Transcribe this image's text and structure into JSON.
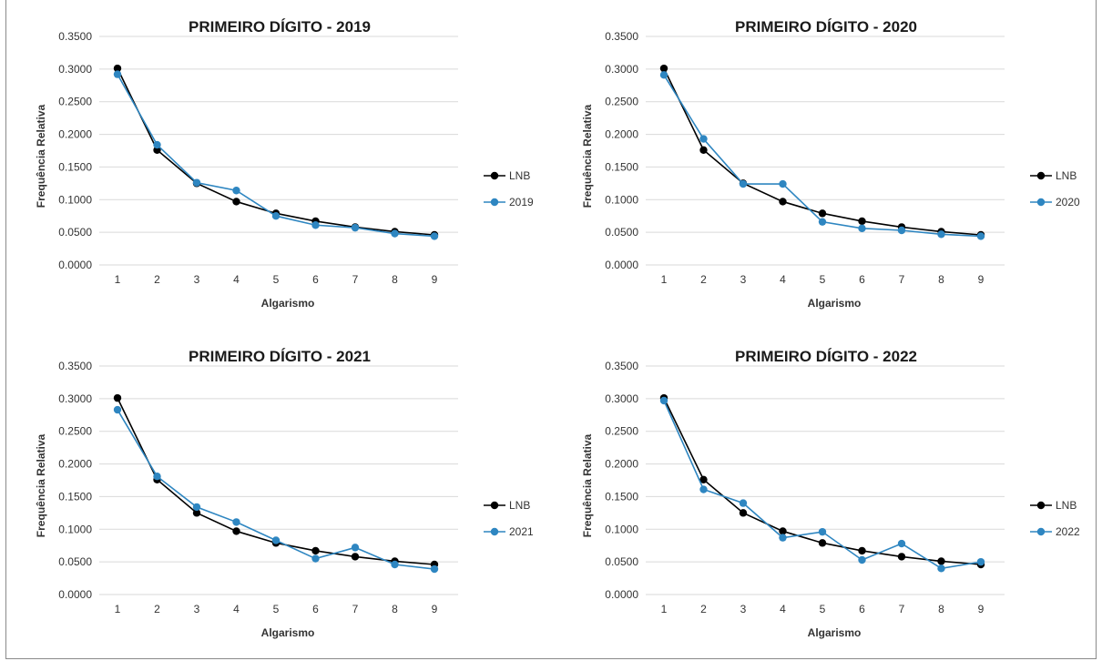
{
  "chart_data": [
    {
      "type": "line",
      "title": "PRIMEIRO DÍGITO - 2019",
      "xlabel": "Algarismo",
      "ylabel": "Frequência Relativa",
      "categories": [
        "1",
        "2",
        "3",
        "4",
        "5",
        "6",
        "7",
        "8",
        "9"
      ],
      "ylim": [
        0,
        0.35
      ],
      "yticks": [
        "0.0000",
        "0.0500",
        "0.1000",
        "0.1500",
        "0.2000",
        "0.2500",
        "0.3000",
        "0.3500"
      ],
      "grid": true,
      "legend": "right",
      "series": [
        {
          "name": "LNB",
          "color": "#000000",
          "values": [
            0.301,
            0.176,
            0.125,
            0.097,
            0.079,
            0.067,
            0.058,
            0.051,
            0.046
          ]
        },
        {
          "name": "2019",
          "color": "#2e86c1",
          "values": [
            0.292,
            0.184,
            0.126,
            0.114,
            0.075,
            0.061,
            0.057,
            0.048,
            0.044
          ]
        }
      ]
    },
    {
      "type": "line",
      "title": "PRIMEIRO DÍGITO - 2020",
      "xlabel": "Algarismo",
      "ylabel": "Frequência Relativa",
      "categories": [
        "1",
        "2",
        "3",
        "4",
        "5",
        "6",
        "7",
        "8",
        "9"
      ],
      "ylim": [
        0,
        0.35
      ],
      "yticks": [
        "0.0000",
        "0.0500",
        "0.1000",
        "0.1500",
        "0.2000",
        "0.2500",
        "0.3000",
        "0.3500"
      ],
      "grid": true,
      "legend": "right",
      "series": [
        {
          "name": "LNB",
          "color": "#000000",
          "values": [
            0.301,
            0.176,
            0.125,
            0.097,
            0.079,
            0.067,
            0.058,
            0.051,
            0.046
          ]
        },
        {
          "name": "2020",
          "color": "#2e86c1",
          "values": [
            0.291,
            0.193,
            0.124,
            0.124,
            0.066,
            0.056,
            0.053,
            0.047,
            0.044
          ]
        }
      ]
    },
    {
      "type": "line",
      "title": "PRIMEIRO DÍGITO - 2021",
      "xlabel": "Algarismo",
      "ylabel": "Frequência Relativa",
      "categories": [
        "1",
        "2",
        "3",
        "4",
        "5",
        "6",
        "7",
        "8",
        "9"
      ],
      "ylim": [
        0,
        0.35
      ],
      "yticks": [
        "0.0000",
        "0.0500",
        "0.1000",
        "0.1500",
        "0.2000",
        "0.2500",
        "0.3000",
        "0.3500"
      ],
      "grid": true,
      "legend": "right",
      "series": [
        {
          "name": "LNB",
          "color": "#000000",
          "values": [
            0.301,
            0.176,
            0.125,
            0.097,
            0.079,
            0.067,
            0.058,
            0.051,
            0.046
          ]
        },
        {
          "name": "2021",
          "color": "#2e86c1",
          "values": [
            0.283,
            0.181,
            0.134,
            0.111,
            0.083,
            0.055,
            0.072,
            0.046,
            0.039
          ]
        }
      ]
    },
    {
      "type": "line",
      "title": "PRIMEIRO DÍGITO - 2022",
      "xlabel": "Algarismo",
      "ylabel": "Frequência Relativa",
      "categories": [
        "1",
        "2",
        "3",
        "4",
        "5",
        "6",
        "7",
        "8",
        "9"
      ],
      "ylim": [
        0,
        0.35
      ],
      "yticks": [
        "0.0000",
        "0.0500",
        "0.1000",
        "0.1500",
        "0.2000",
        "0.2500",
        "0.3000",
        "0.3500"
      ],
      "grid": true,
      "legend": "right",
      "series": [
        {
          "name": "LNB",
          "color": "#000000",
          "values": [
            0.301,
            0.176,
            0.125,
            0.097,
            0.079,
            0.067,
            0.058,
            0.051,
            0.046
          ]
        },
        {
          "name": "2022",
          "color": "#2e86c1",
          "values": [
            0.297,
            0.161,
            0.14,
            0.087,
            0.096,
            0.053,
            0.078,
            0.04,
            0.05
          ]
        }
      ]
    }
  ]
}
